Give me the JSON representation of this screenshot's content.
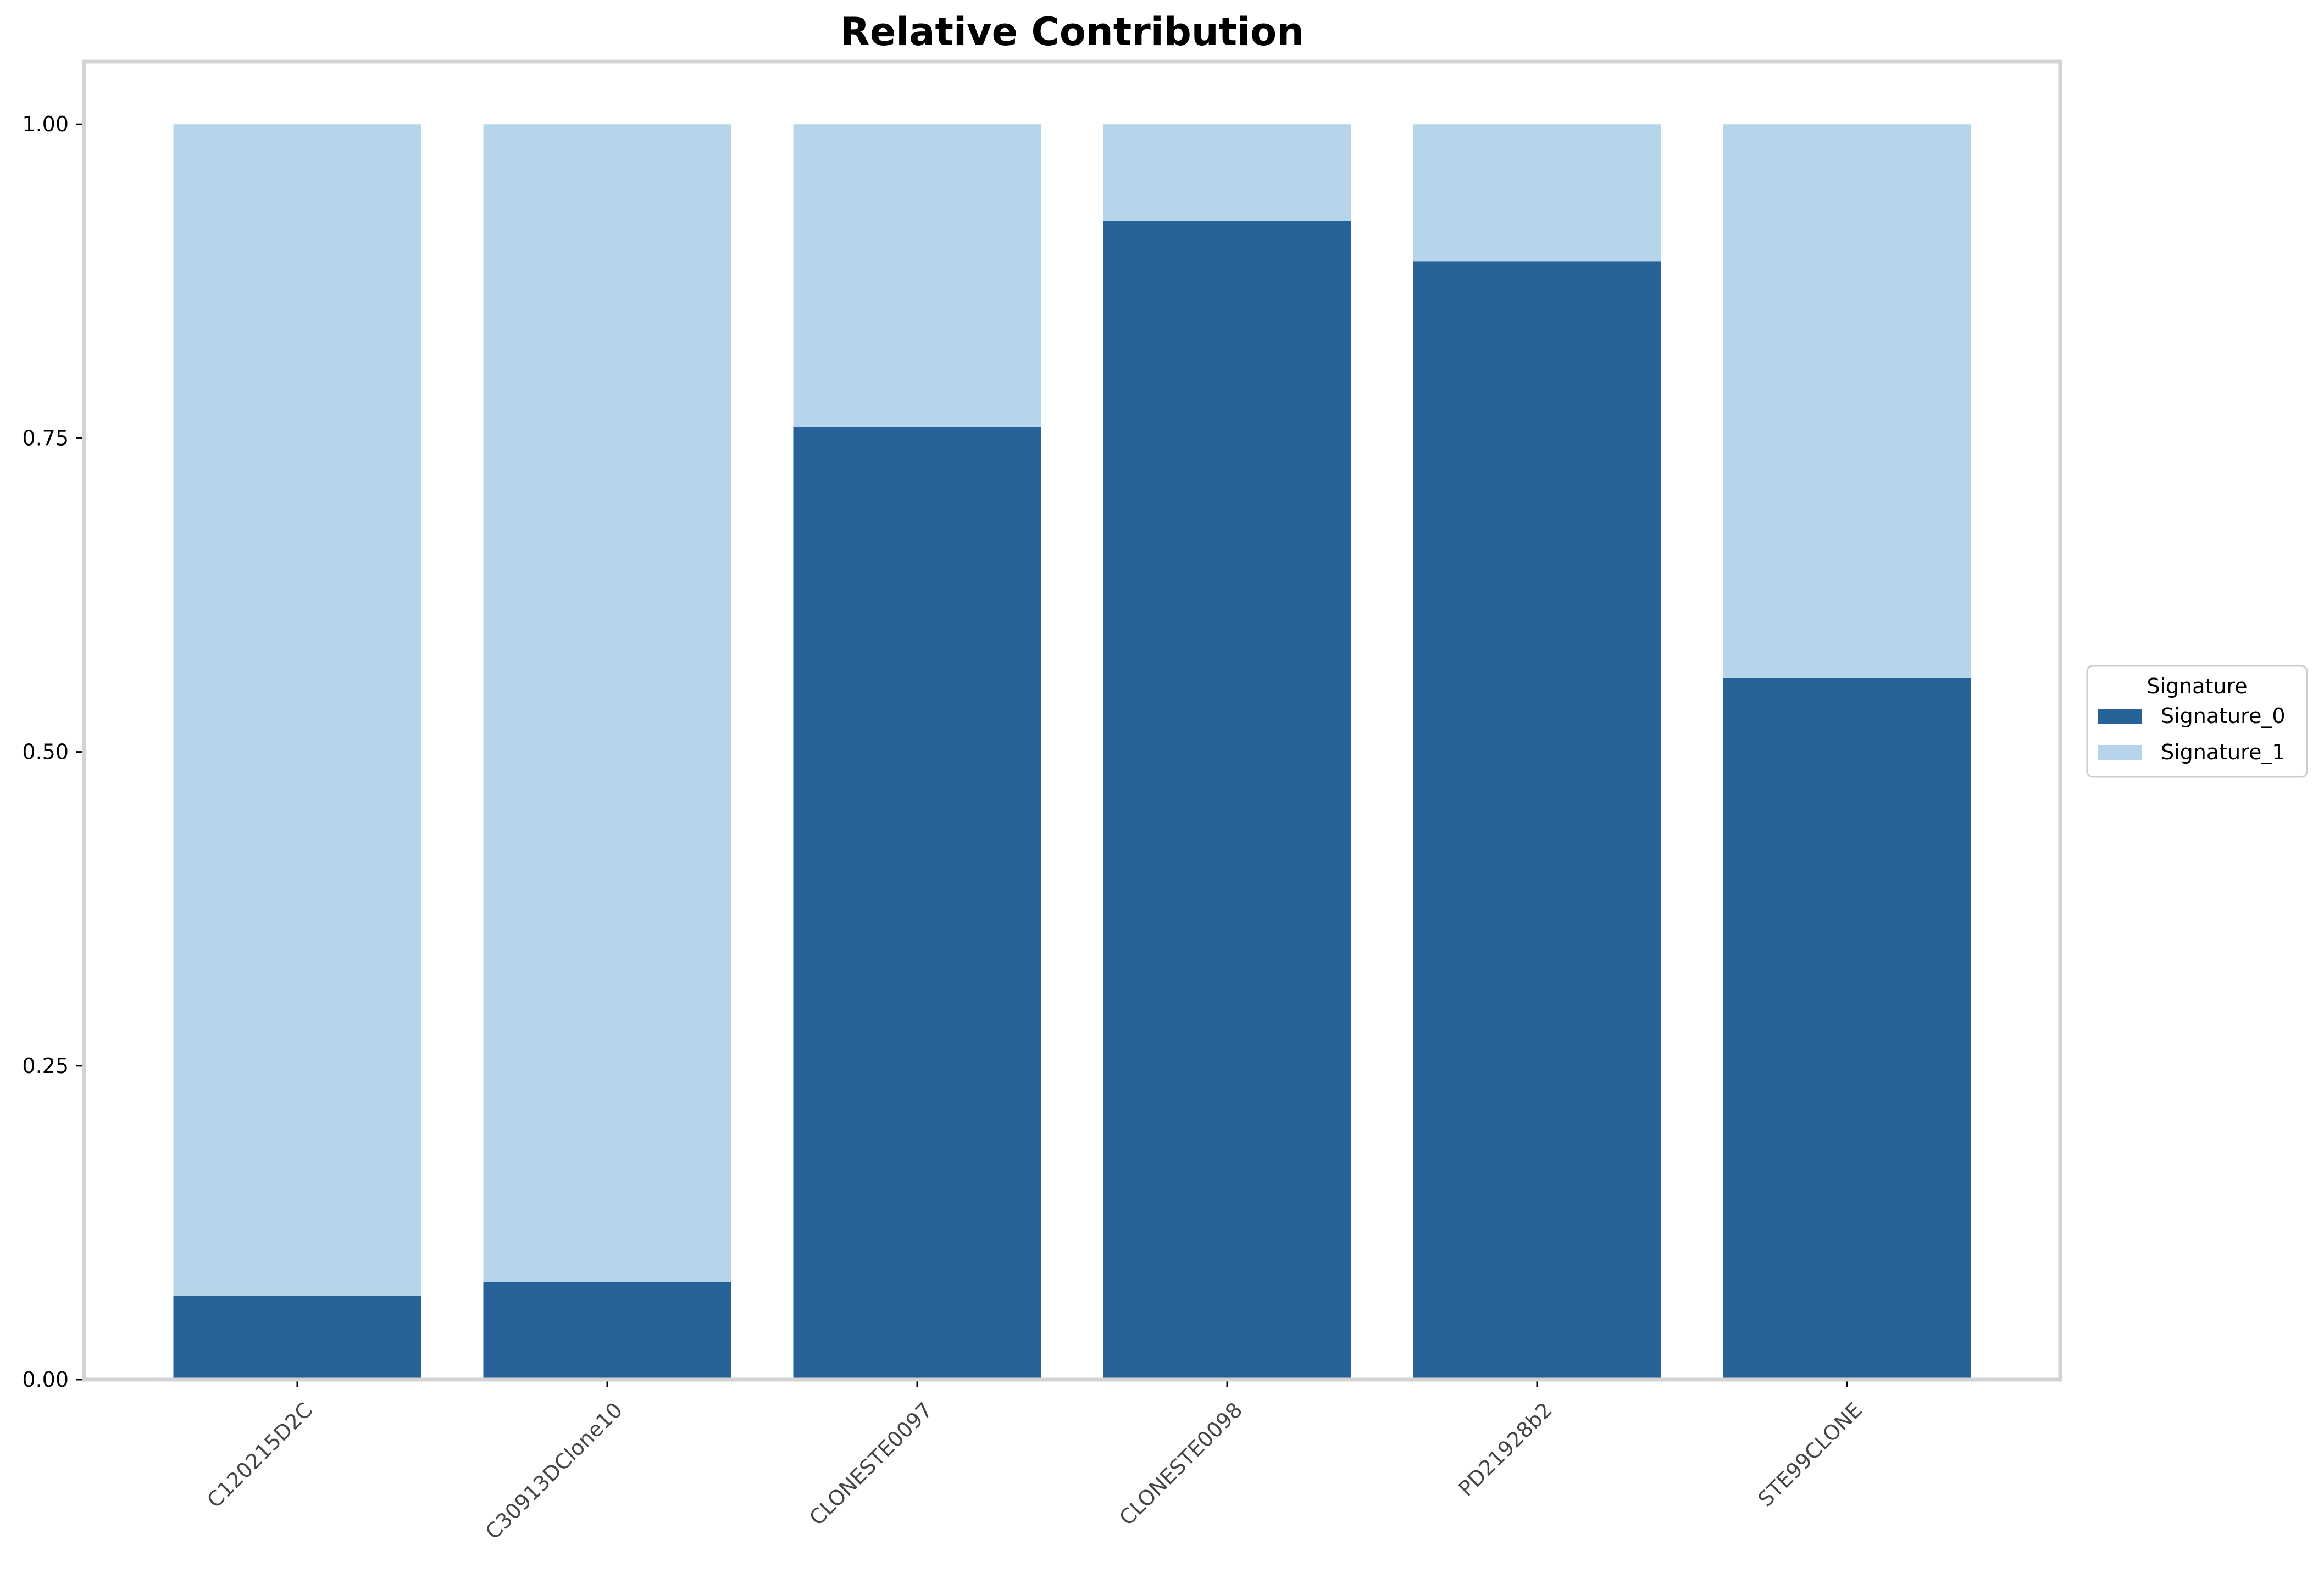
{
  "chart_data": {
    "type": "bar",
    "stacked": true,
    "title": "Relative Contribution",
    "xlabel": "",
    "ylabel": "",
    "categories": [
      "C120215D2C",
      "C30913DClone10",
      "CLONESTE0097",
      "CLONESTE0098",
      "PD21928b2",
      "STE99CLONE"
    ],
    "series": [
      {
        "name": "Signature_0",
        "color": "#266197",
        "values": [
          0.067,
          0.078,
          0.759,
          0.923,
          0.891,
          0.559
        ]
      },
      {
        "name": "Signature_1",
        "color": "#b7d5ea",
        "values": [
          0.933,
          0.922,
          0.241,
          0.077,
          0.109,
          0.441
        ]
      }
    ],
    "ylim": [
      0,
      1.05
    ],
    "yticks": [
      0.0,
      0.25,
      0.5,
      0.75,
      1.0
    ],
    "ytick_labels": [
      "0.00",
      "0.25",
      "0.50",
      "0.75",
      "1.00"
    ],
    "grid": false,
    "legend": {
      "title": "Signature",
      "placement": "center-right-outside"
    },
    "frame_color": "#d3d3d3"
  }
}
